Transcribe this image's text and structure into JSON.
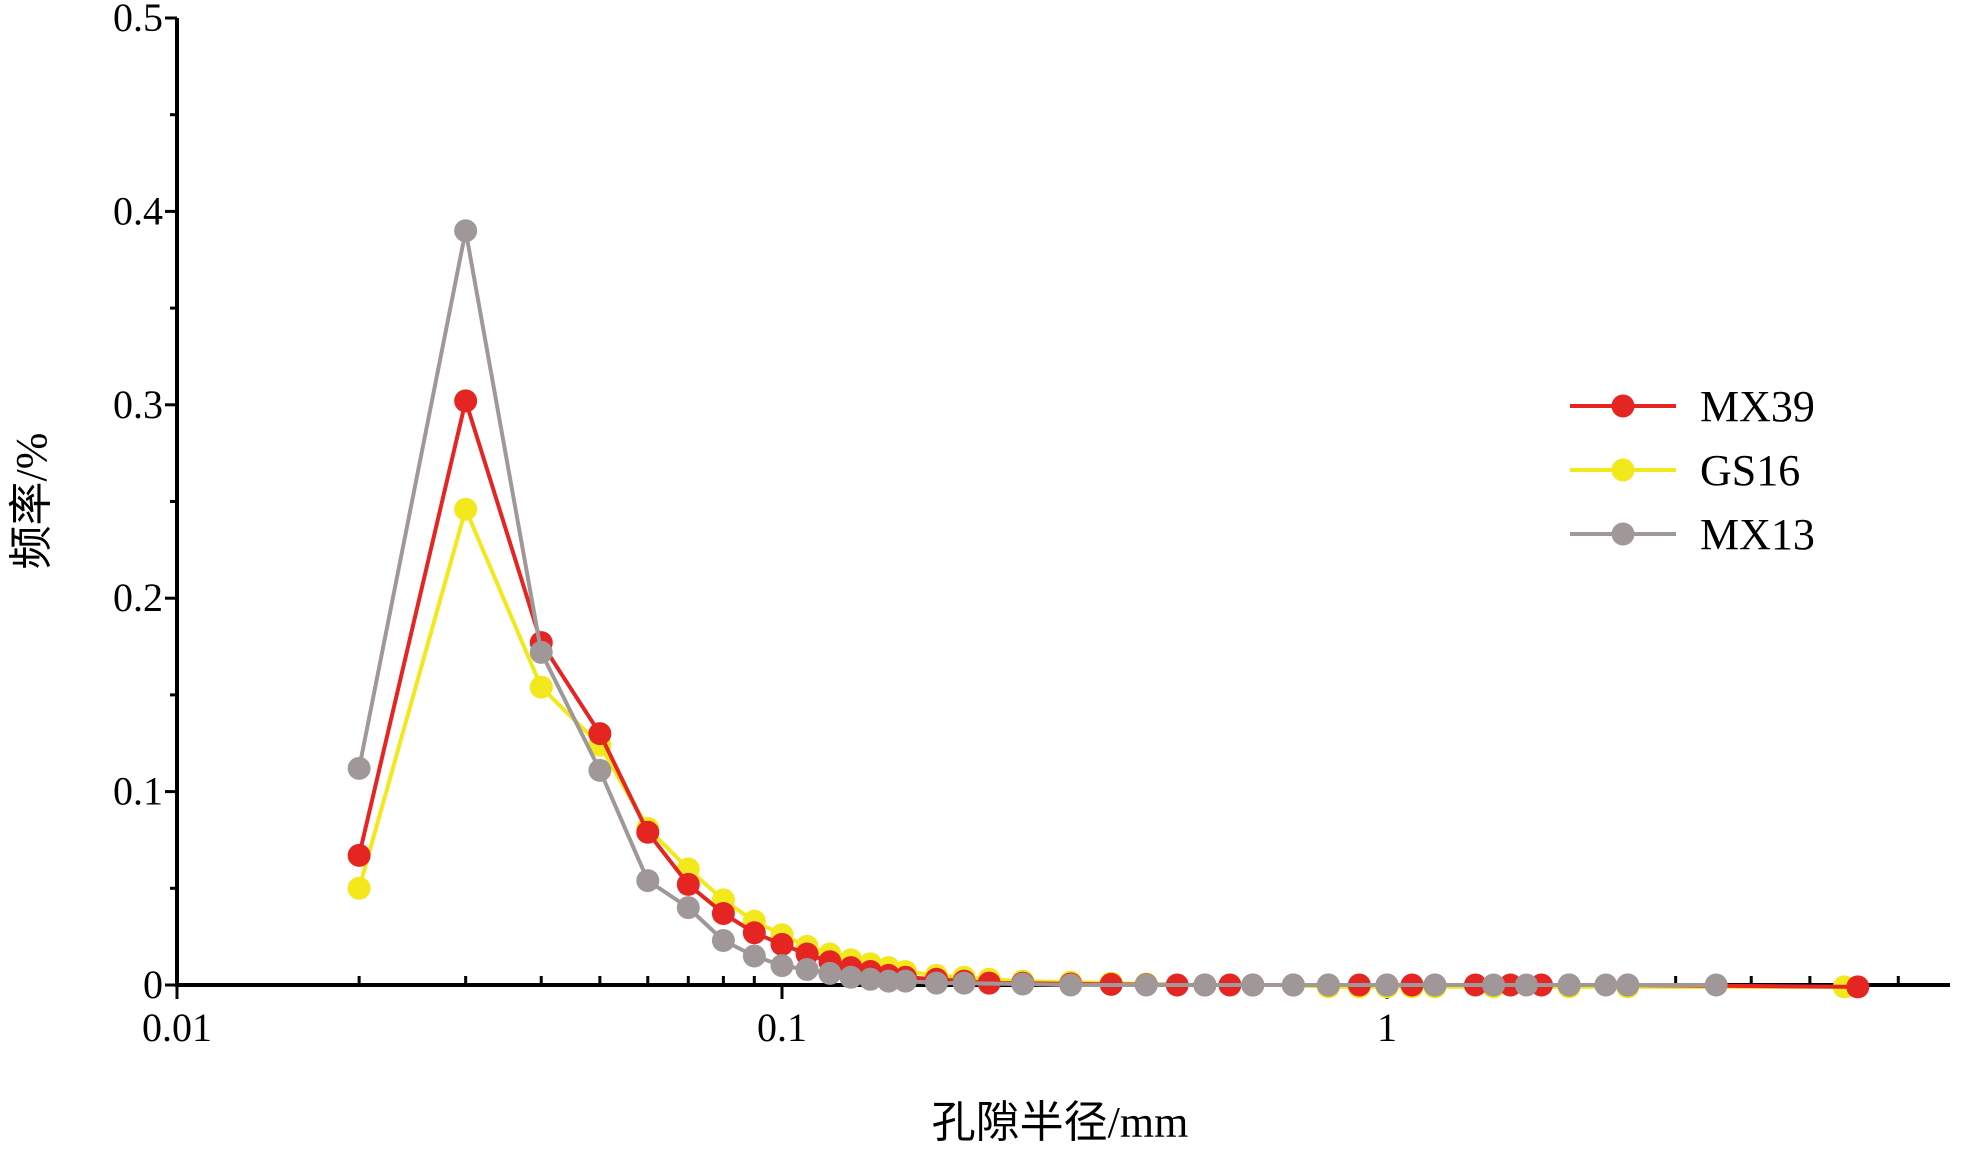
{
  "chart_data": {
    "type": "line",
    "xscale": "log",
    "xlim": [
      0.01,
      7
    ],
    "ylim": [
      0,
      0.5
    ],
    "xlabel": "孔隙半径/mm",
    "ylabel": "频率/%",
    "x_ticks": [
      {
        "value": 0.01,
        "label": "0.01"
      },
      {
        "value": 0.1,
        "label": "0.1"
      },
      {
        "value": 1,
        "label": "1"
      }
    ],
    "y_ticks": [
      {
        "value": 0,
        "label": "0"
      },
      {
        "value": 0.1,
        "label": "0.1"
      },
      {
        "value": 0.2,
        "label": "0.2"
      },
      {
        "value": 0.3,
        "label": "0.3"
      },
      {
        "value": 0.4,
        "label": "0.4"
      },
      {
        "value": 0.5,
        "label": "0.5"
      }
    ],
    "legend_position": "right",
    "grid": false,
    "series": [
      {
        "name": "MX39",
        "color": "#e52521",
        "points": [
          [
            0.02,
            0.067
          ],
          [
            0.03,
            0.302
          ],
          [
            0.04,
            0.177
          ],
          [
            0.05,
            0.13
          ],
          [
            0.06,
            0.079
          ],
          [
            0.07,
            0.052
          ],
          [
            0.08,
            0.037
          ],
          [
            0.09,
            0.027
          ],
          [
            0.1,
            0.021
          ],
          [
            0.11,
            0.016
          ],
          [
            0.12,
            0.012
          ],
          [
            0.13,
            0.009
          ],
          [
            0.14,
            0.007
          ],
          [
            0.15,
            0.005
          ],
          [
            0.16,
            0.004
          ],
          [
            0.18,
            0.003
          ],
          [
            0.2,
            0.002
          ],
          [
            0.22,
            0.001
          ],
          [
            0.25,
            0.001
          ],
          [
            0.3,
            0.0005
          ],
          [
            0.35,
            0.0003
          ],
          [
            0.4,
            0.0002
          ],
          [
            0.45,
            0.0
          ],
          [
            0.5,
            0.0
          ],
          [
            0.55,
            0.0
          ],
          [
            0.6,
            0.0
          ],
          [
            0.7,
            0.0
          ],
          [
            0.8,
            0.0
          ],
          [
            0.9,
            0.0
          ],
          [
            1.0,
            0.0
          ],
          [
            1.1,
            0.0
          ],
          [
            1.2,
            0.0
          ],
          [
            1.4,
            0.0
          ],
          [
            1.6,
            0.0
          ],
          [
            1.8,
            0.0
          ],
          [
            2.0,
            0.0
          ],
          [
            2.5,
            0.0
          ],
          [
            6.0,
            -0.001
          ]
        ]
      },
      {
        "name": "GS16",
        "color": "#f2e81c",
        "points": [
          [
            0.02,
            0.05
          ],
          [
            0.03,
            0.246
          ],
          [
            0.04,
            0.154
          ],
          [
            0.05,
            0.124
          ],
          [
            0.06,
            0.081
          ],
          [
            0.07,
            0.06
          ],
          [
            0.08,
            0.044
          ],
          [
            0.09,
            0.033
          ],
          [
            0.1,
            0.026
          ],
          [
            0.11,
            0.02
          ],
          [
            0.12,
            0.016
          ],
          [
            0.13,
            0.013
          ],
          [
            0.14,
            0.011
          ],
          [
            0.15,
            0.009
          ],
          [
            0.16,
            0.007
          ],
          [
            0.18,
            0.005
          ],
          [
            0.2,
            0.004
          ],
          [
            0.22,
            0.003
          ],
          [
            0.25,
            0.002
          ],
          [
            0.3,
            0.0015
          ],
          [
            0.35,
            0.001
          ],
          [
            0.4,
            0.0005
          ],
          [
            0.5,
            0.0
          ],
          [
            0.6,
            0.0
          ],
          [
            0.7,
            0.0
          ],
          [
            0.8,
            -0.001
          ],
          [
            0.9,
            -0.001
          ],
          [
            1.0,
            -0.001
          ],
          [
            1.1,
            -0.001
          ],
          [
            1.2,
            -0.001
          ],
          [
            1.5,
            -0.001
          ],
          [
            2.0,
            -0.001
          ],
          [
            2.5,
            -0.001
          ],
          [
            5.7,
            -0.001
          ]
        ]
      },
      {
        "name": "MX13",
        "color": "#a09898",
        "points": [
          [
            0.02,
            0.112
          ],
          [
            0.03,
            0.39
          ],
          [
            0.04,
            0.172
          ],
          [
            0.05,
            0.111
          ],
          [
            0.06,
            0.054
          ],
          [
            0.07,
            0.04
          ],
          [
            0.08,
            0.023
          ],
          [
            0.09,
            0.015
          ],
          [
            0.1,
            0.01
          ],
          [
            0.11,
            0.008
          ],
          [
            0.12,
            0.006
          ],
          [
            0.13,
            0.004
          ],
          [
            0.14,
            0.003
          ],
          [
            0.15,
            0.002
          ],
          [
            0.16,
            0.002
          ],
          [
            0.18,
            0.001
          ],
          [
            0.2,
            0.001
          ],
          [
            0.25,
            0.0005
          ],
          [
            0.3,
            0.0
          ],
          [
            0.4,
            0.0
          ],
          [
            0.5,
            0.0
          ],
          [
            0.6,
            0.0
          ],
          [
            0.7,
            0.0
          ],
          [
            0.8,
            0.0
          ],
          [
            1.0,
            0.0
          ],
          [
            1.2,
            0.0
          ],
          [
            1.5,
            0.0
          ],
          [
            1.7,
            0.0
          ],
          [
            2.0,
            0.0
          ],
          [
            2.3,
            0.0
          ],
          [
            2.5,
            0.0
          ],
          [
            3.5,
            0.0
          ]
        ]
      }
    ]
  }
}
